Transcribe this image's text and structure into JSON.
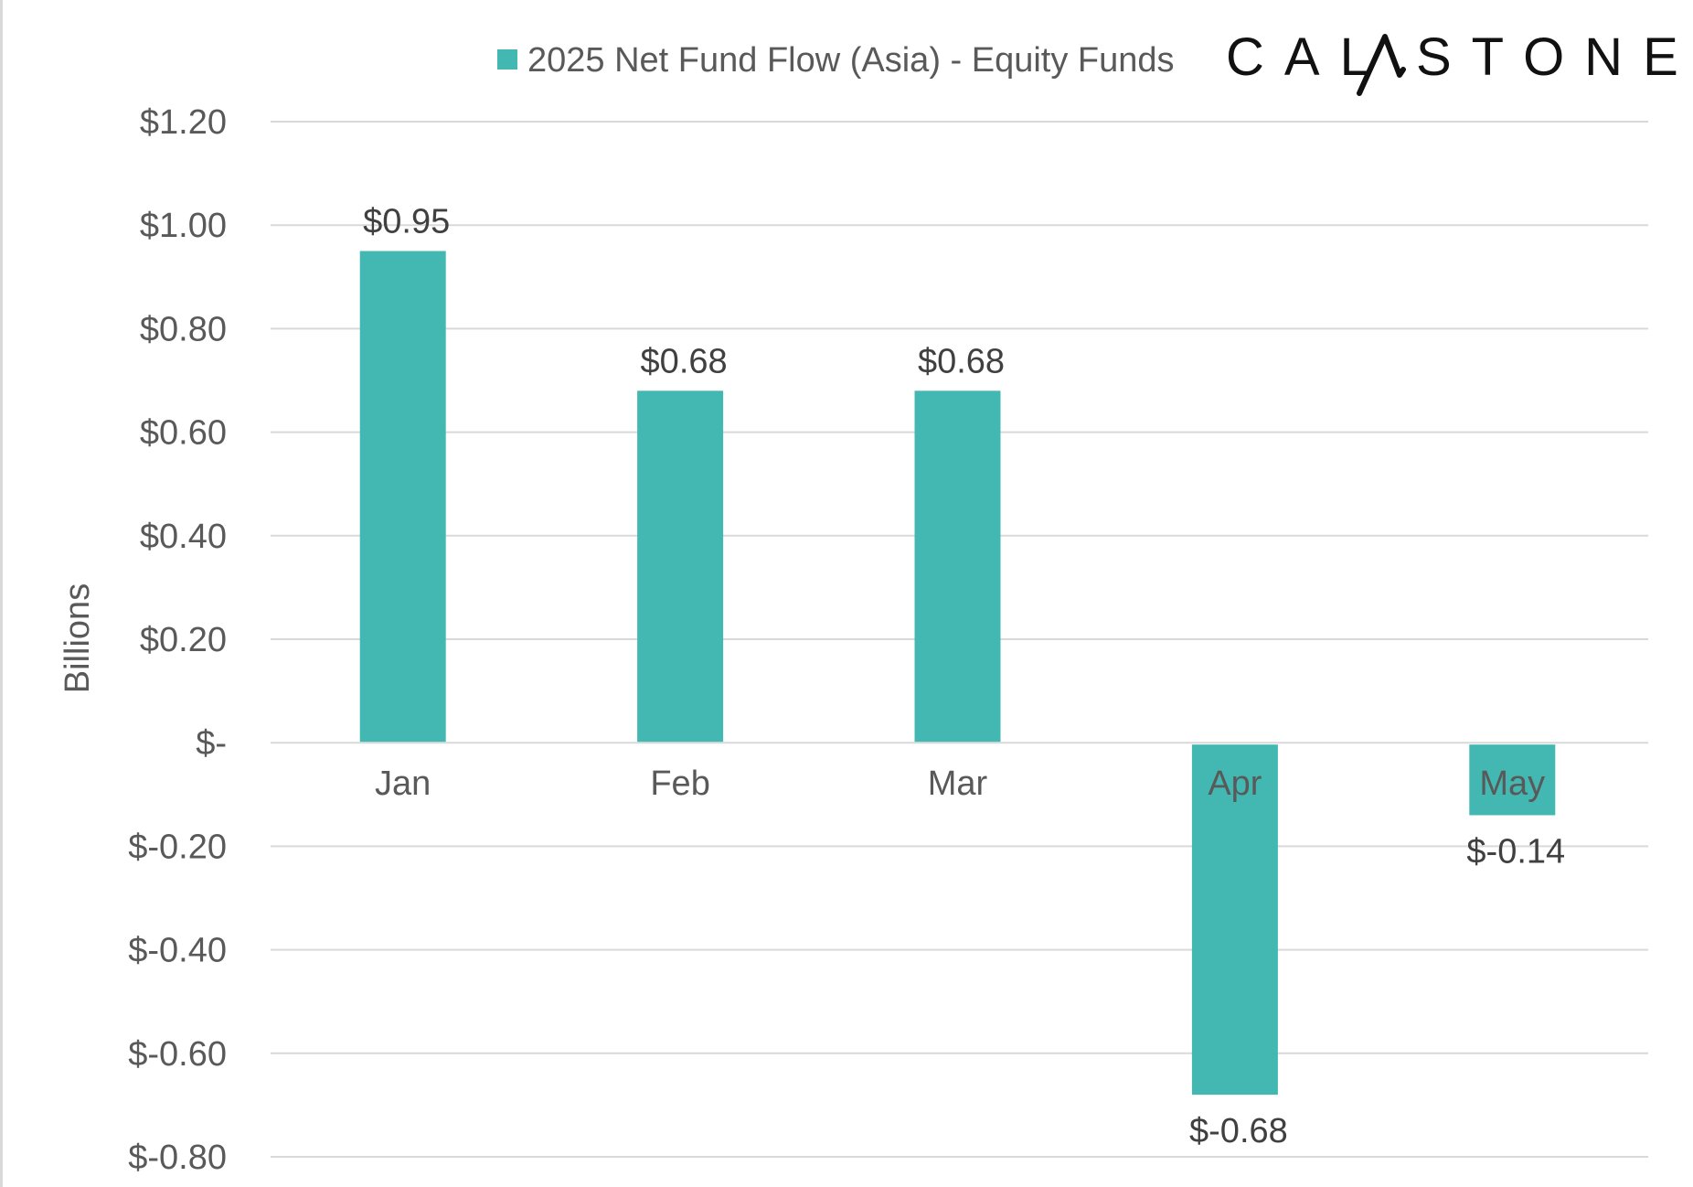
{
  "legend": {
    "label": "2025 Net Fund Flow (Asia) - Equity Funds",
    "swatch_color": "#43B8B2"
  },
  "logo": {
    "text": "CALASTONE",
    "left": "CAL",
    "right": "STONE",
    "color": "#111111"
  },
  "chart_data": {
    "type": "bar",
    "categories": [
      "Jan",
      "Feb",
      "Mar",
      "Apr",
      "May"
    ],
    "series": [
      {
        "name": "2025 Net Fund Flow (Asia) - Equity Funds",
        "values": [
          0.95,
          0.68,
          0.68,
          -0.68,
          -0.14
        ],
        "color": "#43B8B2"
      }
    ],
    "data_labels": [
      "$0.95",
      "$0.68",
      "$0.68",
      "$-0.68",
      "$-0.14"
    ],
    "ylabel": "Billions",
    "xlabel": "",
    "ylim": [
      -0.8,
      1.2
    ],
    "yticks": [
      1.2,
      1.0,
      0.8,
      0.6,
      0.4,
      0.2,
      0,
      -0.2,
      -0.4,
      -0.6,
      -0.8
    ],
    "ytick_labels": [
      "$1.20",
      "$1.00",
      "$0.80",
      "$0.60",
      "$0.40",
      "$0.20",
      "$-",
      "$-0.20",
      "$-0.40",
      "$-0.60",
      "$-0.80"
    ],
    "grid": true,
    "gridline_color": "#d9d9d9",
    "legend_position": "top-center"
  }
}
